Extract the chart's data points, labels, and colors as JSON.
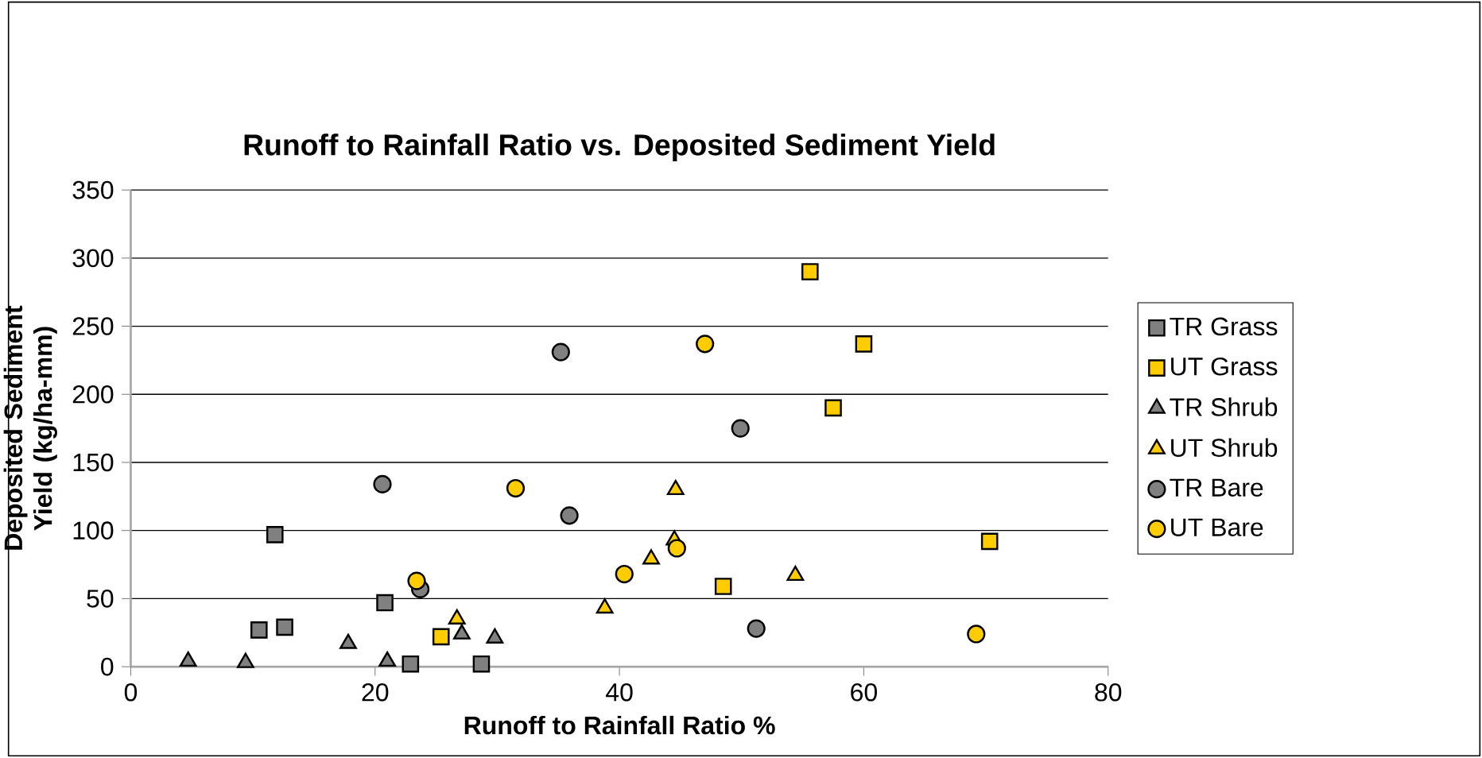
{
  "chart_data": {
    "type": "scatter",
    "title": "Runoff to Rainfall Ratio vs. Deposited Sediment Yield",
    "xlabel": "Runoff to Rainfall Ratio %",
    "ylabel": "Deposited Sediment Yield (kg/ha-mm)",
    "xlim": [
      0,
      80
    ],
    "ylim": [
      0,
      350
    ],
    "xticks": [
      0,
      20,
      40,
      60,
      80
    ],
    "yticks": [
      0,
      50,
      100,
      150,
      200,
      250,
      300,
      350
    ],
    "grid": "y",
    "legend": "right",
    "series": [
      {
        "name": "TR Grass",
        "color": "#808080",
        "marker": "square",
        "x": [
          11.8,
          10.5,
          12.6,
          20.8,
          22.9,
          28.7
        ],
        "values": [
          97,
          27,
          29,
          47,
          2,
          2
        ]
      },
      {
        "name": "UT Grass",
        "color": "#ffcc00",
        "marker": "square",
        "x": [
          25.4,
          48.5,
          55.6,
          57.5,
          60,
          70.3
        ],
        "values": [
          22,
          59,
          290,
          190,
          237,
          92
        ]
      },
      {
        "name": "TR Shrub",
        "color": "#808080",
        "marker": "triangle",
        "x": [
          4.7,
          9.4,
          17.8,
          21,
          27.1,
          29.8
        ],
        "values": [
          4,
          3,
          17,
          4,
          24,
          21
        ]
      },
      {
        "name": "UT Shrub",
        "color": "#ffcc00",
        "marker": "triangle",
        "x": [
          26.7,
          38.8,
          42.6,
          44.6,
          44.5,
          54.4
        ],
        "values": [
          35,
          43,
          79,
          130,
          93,
          67
        ]
      },
      {
        "name": "TR Bare",
        "color": "#808080",
        "marker": "circle",
        "x": [
          20.6,
          23.7,
          35.2,
          35.9,
          49.9,
          51.2
        ],
        "values": [
          134,
          57,
          231,
          111,
          175,
          28
        ]
      },
      {
        "name": "UT Bare",
        "color": "#ffcc00",
        "marker": "circle",
        "x": [
          23.4,
          31.5,
          40.4,
          44.7,
          47,
          69.2
        ],
        "values": [
          63,
          131,
          68,
          87,
          237,
          24
        ]
      }
    ]
  }
}
